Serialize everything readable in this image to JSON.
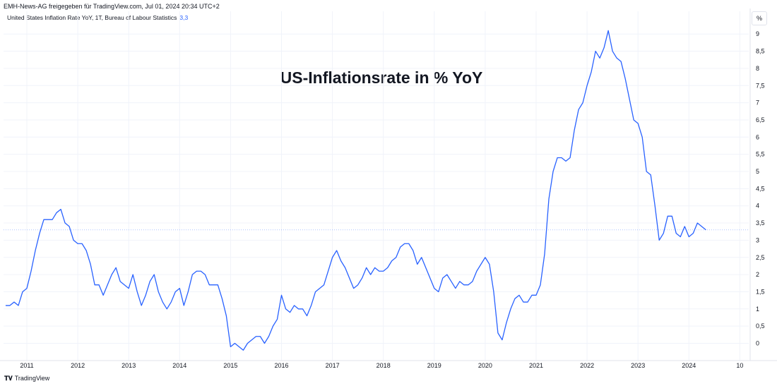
{
  "header": {
    "text": "EMH-News-AG freigegeben für TradingView.com, Jul 01, 2024 20:34 UTC+2"
  },
  "legend": {
    "label": "United States Inflation Rate YoY, 1T, Bureau of Labour Statistics",
    "value": "3,3"
  },
  "unit": "%",
  "footer": {
    "brand": "TradingView"
  },
  "colors": {
    "line": "#2962ff",
    "grid": "#f0f3fa",
    "axis": "#e0e3eb"
  },
  "chart_data": {
    "type": "line",
    "title": "US-Inflationsrate in % YoY",
    "x_start": "2010-08",
    "frequency": "monthly",
    "xticks": [
      "2011",
      "2012",
      "2013",
      "2014",
      "2015",
      "2016",
      "2017",
      "2018",
      "2019",
      "2020",
      "2021",
      "2022",
      "2023",
      "2024",
      "10"
    ],
    "yticks": [
      "0",
      "0,5",
      "1",
      "1,5",
      "2",
      "2,5",
      "3",
      "3,5",
      "4",
      "4,5",
      "5",
      "5,5",
      "6",
      "6,5",
      "7",
      "7,5",
      "8",
      "8,5",
      "9"
    ],
    "ylim": [
      -0.25,
      9.5
    ],
    "last_value": 3.3,
    "series": [
      {
        "values": [
          1.1,
          1.1,
          1.2,
          1.1,
          1.5,
          1.6,
          2.1,
          2.7,
          3.2,
          3.6,
          3.6,
          3.6,
          3.8,
          3.9,
          3.5,
          3.4,
          3.0,
          2.9,
          2.9,
          2.7,
          2.3,
          1.7,
          1.7,
          1.4,
          1.7,
          2.0,
          2.2,
          1.8,
          1.7,
          1.6,
          2.0,
          1.5,
          1.1,
          1.4,
          1.8,
          2.0,
          1.5,
          1.2,
          1.0,
          1.2,
          1.5,
          1.6,
          1.1,
          1.5,
          2.0,
          2.1,
          2.1,
          2.0,
          1.7,
          1.7,
          1.7,
          1.3,
          0.8,
          -0.1,
          0.0,
          -0.1,
          -0.2,
          0.0,
          0.1,
          0.2,
          0.2,
          0.0,
          0.2,
          0.5,
          0.7,
          1.4,
          1.0,
          0.9,
          1.1,
          1.0,
          1.0,
          0.8,
          1.1,
          1.5,
          1.6,
          1.7,
          2.1,
          2.5,
          2.7,
          2.4,
          2.2,
          1.9,
          1.6,
          1.7,
          1.9,
          2.2,
          2.0,
          2.2,
          2.1,
          2.1,
          2.2,
          2.4,
          2.5,
          2.8,
          2.9,
          2.9,
          2.7,
          2.3,
          2.5,
          2.2,
          1.9,
          1.6,
          1.5,
          1.9,
          2.0,
          1.8,
          1.6,
          1.8,
          1.7,
          1.7,
          1.8,
          2.1,
          2.3,
          2.5,
          2.3,
          1.5,
          0.3,
          0.1,
          0.6,
          1.0,
          1.3,
          1.4,
          1.2,
          1.2,
          1.4,
          1.4,
          1.7,
          2.6,
          4.2,
          5.0,
          5.4,
          5.4,
          5.3,
          5.4,
          6.2,
          6.8,
          7.0,
          7.5,
          7.9,
          8.5,
          8.3,
          8.6,
          9.1,
          8.5,
          8.3,
          8.2,
          7.7,
          7.1,
          6.5,
          6.4,
          6.0,
          5.0,
          4.9,
          4.0,
          3.0,
          3.2,
          3.7,
          3.7,
          3.2,
          3.1,
          3.4,
          3.1,
          3.2,
          3.5,
          3.4,
          3.3
        ]
      }
    ]
  }
}
